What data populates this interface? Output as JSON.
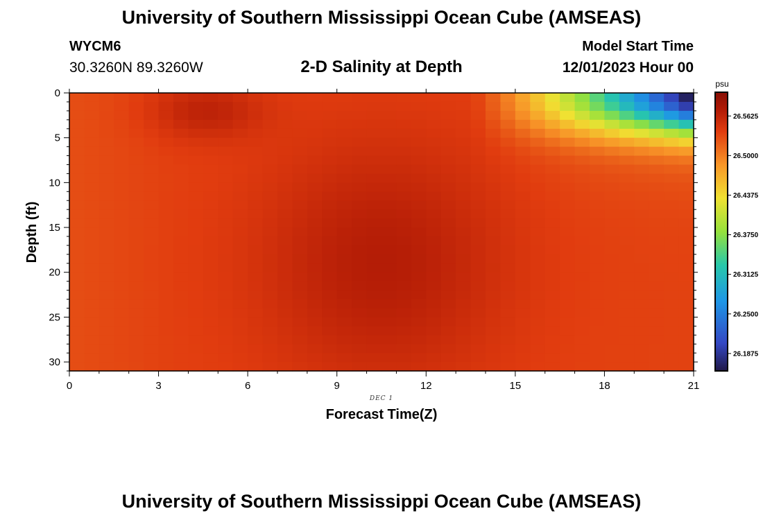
{
  "header": {
    "title": "University of Southern Mississippi Ocean Cube (AMSEAS)",
    "station_id": "WYCM6",
    "station_coords": "30.3260N  89.3260W",
    "subtitle": "2-D Salinity at Depth",
    "model_start_label": "Model Start Time",
    "model_start_value": "12/01/2023 Hour 00"
  },
  "footer": {
    "title": "University of Southern Mississippi Ocean Cube (AMSEAS)"
  },
  "chart_data": {
    "type": "heatmap",
    "title": "2-D Salinity at Depth",
    "xlabel": "Forecast Time(Z)",
    "ylabel": "Depth (ft)",
    "date_label": "DEC 1",
    "x_ticks": [
      "0",
      "3",
      "6",
      "9",
      "12",
      "15",
      "18",
      "21"
    ],
    "y_ticks": [
      "0",
      "5",
      "10",
      "15",
      "20",
      "25",
      "30"
    ],
    "xlim": [
      0,
      21
    ],
    "ylim": [
      0,
      31
    ],
    "y_inverted": true,
    "colorbar": {
      "unit": "psu",
      "ticks": [
        "26.5625",
        "26.5000",
        "26.4375",
        "26.3750",
        "26.3125",
        "26.2500",
        "26.1875"
      ],
      "range": [
        26.16,
        26.6
      ]
    },
    "grid_columns": 42,
    "grid_rows": 31,
    "model_params": {
      "base_salinity": 26.535,
      "core_time": 10.5,
      "core_depth": 19,
      "fresh_surface_start_hour": 13.5,
      "fresh_surface_min": 26.18,
      "fresh_layer_depth": 4.5
    }
  }
}
